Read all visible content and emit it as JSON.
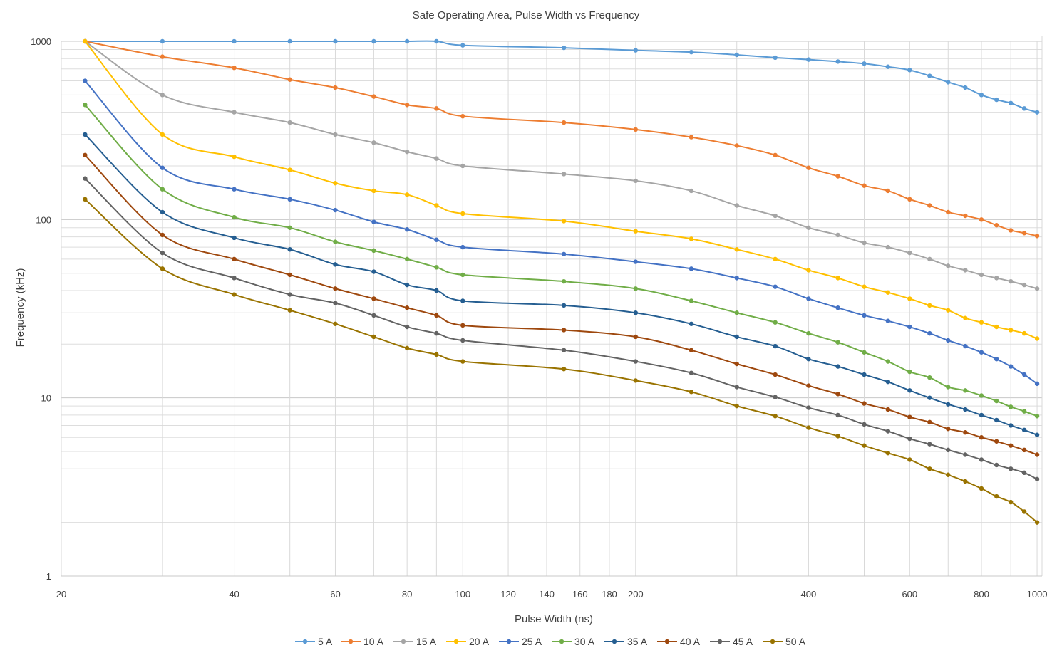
{
  "chart_data": {
    "type": "line",
    "title": "Safe Operating Area, Pulse Width vs Frequency",
    "xlabel": "Pulse Width (ns)",
    "ylabel": "Frequency (kHz)",
    "xscale": "log",
    "yscale": "log",
    "xlim": [
      20,
      1020
    ],
    "ylim": [
      1,
      1000
    ],
    "xticks": [
      20,
      40,
      60,
      80,
      100,
      120,
      140,
      160,
      180,
      200,
      400,
      600,
      800,
      1000
    ],
    "yticks": [
      1,
      10,
      100,
      1000
    ],
    "grid": true,
    "legend_position": "bottom",
    "x": [
      22,
      30,
      40,
      50,
      60,
      70,
      80,
      90,
      100,
      150,
      200,
      250,
      300,
      350,
      400,
      450,
      500,
      550,
      600,
      650,
      700,
      750,
      800,
      850,
      900,
      950,
      1000
    ],
    "series": [
      {
        "name": "5 A",
        "color": "#5B9BD5",
        "values": [
          1000,
          1000,
          1000,
          1000,
          1000,
          1000,
          1000,
          1000,
          950,
          920,
          890,
          870,
          840,
          810,
          790,
          770,
          750,
          720,
          690,
          640,
          590,
          550,
          500,
          470,
          450,
          420,
          400
        ]
      },
      {
        "name": "10 A",
        "color": "#ED7D31",
        "values": [
          1000,
          820,
          710,
          610,
          550,
          490,
          440,
          420,
          380,
          350,
          320,
          290,
          260,
          230,
          195,
          175,
          155,
          145,
          130,
          120,
          110,
          105,
          100,
          93,
          87,
          84,
          81
        ]
      },
      {
        "name": "15 A",
        "color": "#A5A5A5",
        "values": [
          1000,
          500,
          400,
          350,
          300,
          270,
          240,
          220,
          200,
          180,
          165,
          145,
          120,
          105,
          90,
          82,
          74,
          70,
          65,
          60,
          55,
          52,
          49,
          47,
          45,
          43,
          41
        ]
      },
      {
        "name": "20 A",
        "color": "#FFC000",
        "values": [
          1000,
          300,
          225,
          190,
          160,
          145,
          138,
          120,
          108,
          98,
          86,
          78,
          68,
          60,
          52,
          47,
          42,
          39,
          36,
          33,
          31,
          28,
          26.5,
          25,
          24,
          23,
          21.5
        ]
      },
      {
        "name": "25 A",
        "color": "#4472C4",
        "values": [
          600,
          195,
          148,
          130,
          113,
          97,
          88,
          77,
          70,
          64,
          58,
          53,
          47,
          42,
          36,
          32,
          29,
          27,
          25,
          23,
          21,
          19.5,
          18,
          16.5,
          15,
          13.5,
          12
        ]
      },
      {
        "name": "30 A",
        "color": "#70AD47",
        "values": [
          440,
          148,
          103,
          90,
          75,
          67,
          60,
          54,
          49,
          45,
          41,
          35,
          30,
          26.5,
          23,
          20.5,
          18,
          16,
          14,
          13,
          11.5,
          11,
          10.3,
          9.6,
          8.9,
          8.4,
          7.9
        ]
      },
      {
        "name": "35 A",
        "color": "#255E91",
        "values": [
          300,
          110,
          79,
          68,
          56,
          51,
          43,
          40,
          35,
          33,
          30,
          26,
          22,
          19.5,
          16.5,
          15,
          13.5,
          12.3,
          11,
          10,
          9.2,
          8.6,
          8,
          7.5,
          7,
          6.6,
          6.2
        ]
      },
      {
        "name": "40 A",
        "color": "#9E480E",
        "values": [
          230,
          82,
          60,
          49,
          41,
          36,
          32,
          29,
          25.5,
          24,
          22,
          18.5,
          15.5,
          13.5,
          11.7,
          10.5,
          9.3,
          8.6,
          7.8,
          7.3,
          6.7,
          6.4,
          6,
          5.7,
          5.4,
          5.1,
          4.8
        ]
      },
      {
        "name": "45 A",
        "color": "#636363",
        "values": [
          170,
          65,
          47,
          38,
          34,
          29,
          25,
          23,
          21,
          18.5,
          16,
          13.8,
          11.5,
          10.1,
          8.8,
          8,
          7.1,
          6.5,
          5.9,
          5.5,
          5.1,
          4.8,
          4.5,
          4.2,
          4,
          3.8,
          3.5
        ]
      },
      {
        "name": "50 A",
        "color": "#997300",
        "values": [
          130,
          53,
          38,
          31,
          26,
          22,
          19,
          17.5,
          16,
          14.5,
          12.5,
          10.8,
          9,
          7.9,
          6.8,
          6.1,
          5.4,
          4.9,
          4.5,
          4,
          3.7,
          3.4,
          3.1,
          2.8,
          2.6,
          2.3,
          2
        ]
      }
    ]
  }
}
